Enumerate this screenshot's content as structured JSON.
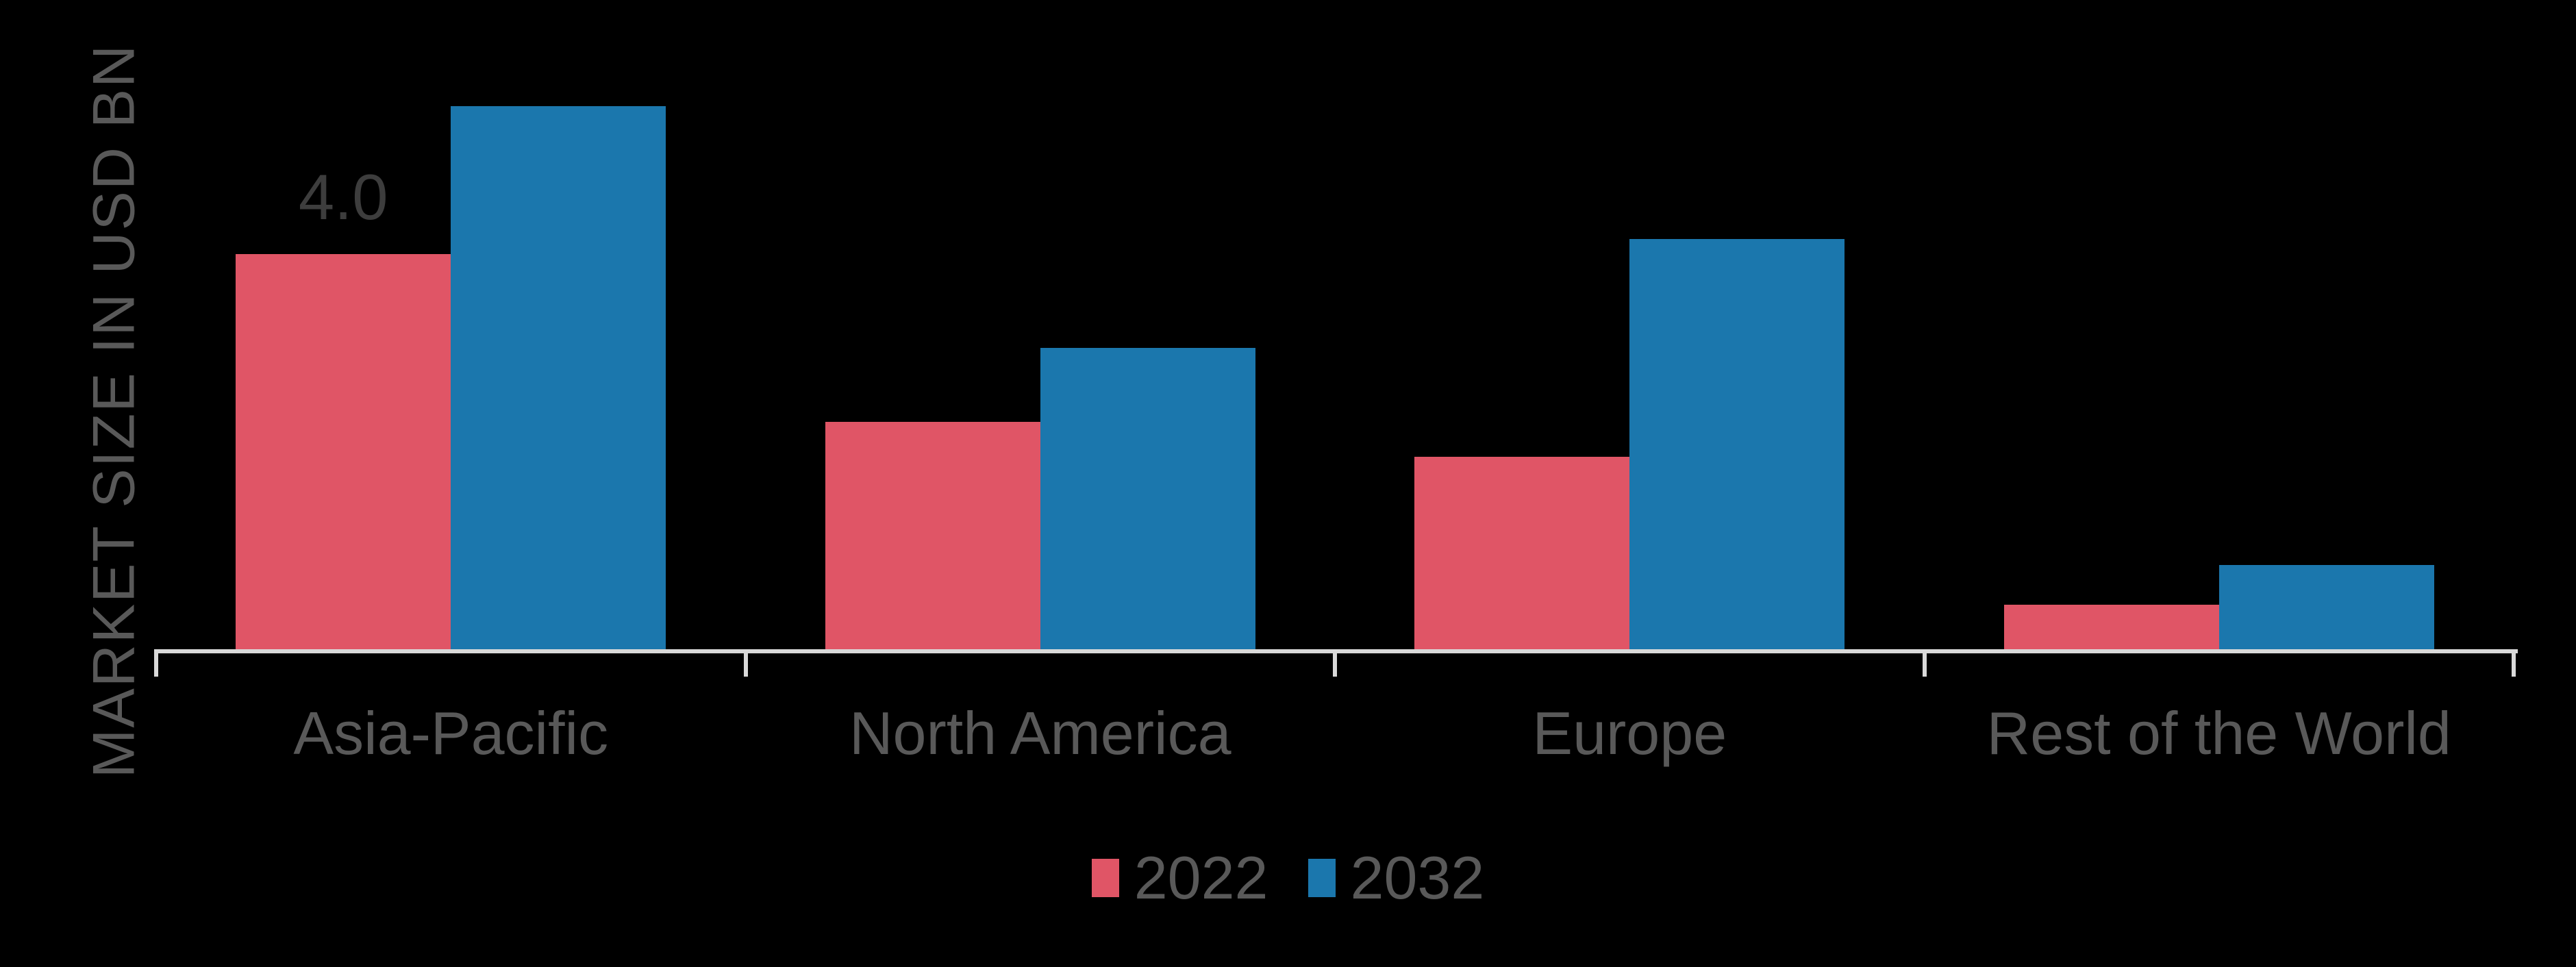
{
  "chart_data": {
    "type": "bar",
    "title": "",
    "ylabel": "MARKET SIZE IN USD BN",
    "xlabel": "",
    "categories": [
      "Asia-Pacific",
      "North America",
      "Europe",
      "Rest of the World"
    ],
    "series": [
      {
        "name": "2022",
        "color": "#e05566",
        "values": [
          4.0,
          2.3,
          1.95,
          0.45
        ]
      },
      {
        "name": "2032",
        "color": "#1b77ad",
        "values": [
          5.5,
          3.05,
          4.15,
          0.85
        ]
      }
    ],
    "bar_labels": [
      {
        "series": "2022",
        "category": "Asia-Pacific",
        "text": "4.0"
      }
    ],
    "ylim": [
      0,
      6
    ],
    "grid": false,
    "legend_position": "bottom",
    "background": "#000000",
    "axis_color": "#d9d9d9",
    "text_color": "#595959",
    "value_label_color": "#3d3d3d"
  }
}
